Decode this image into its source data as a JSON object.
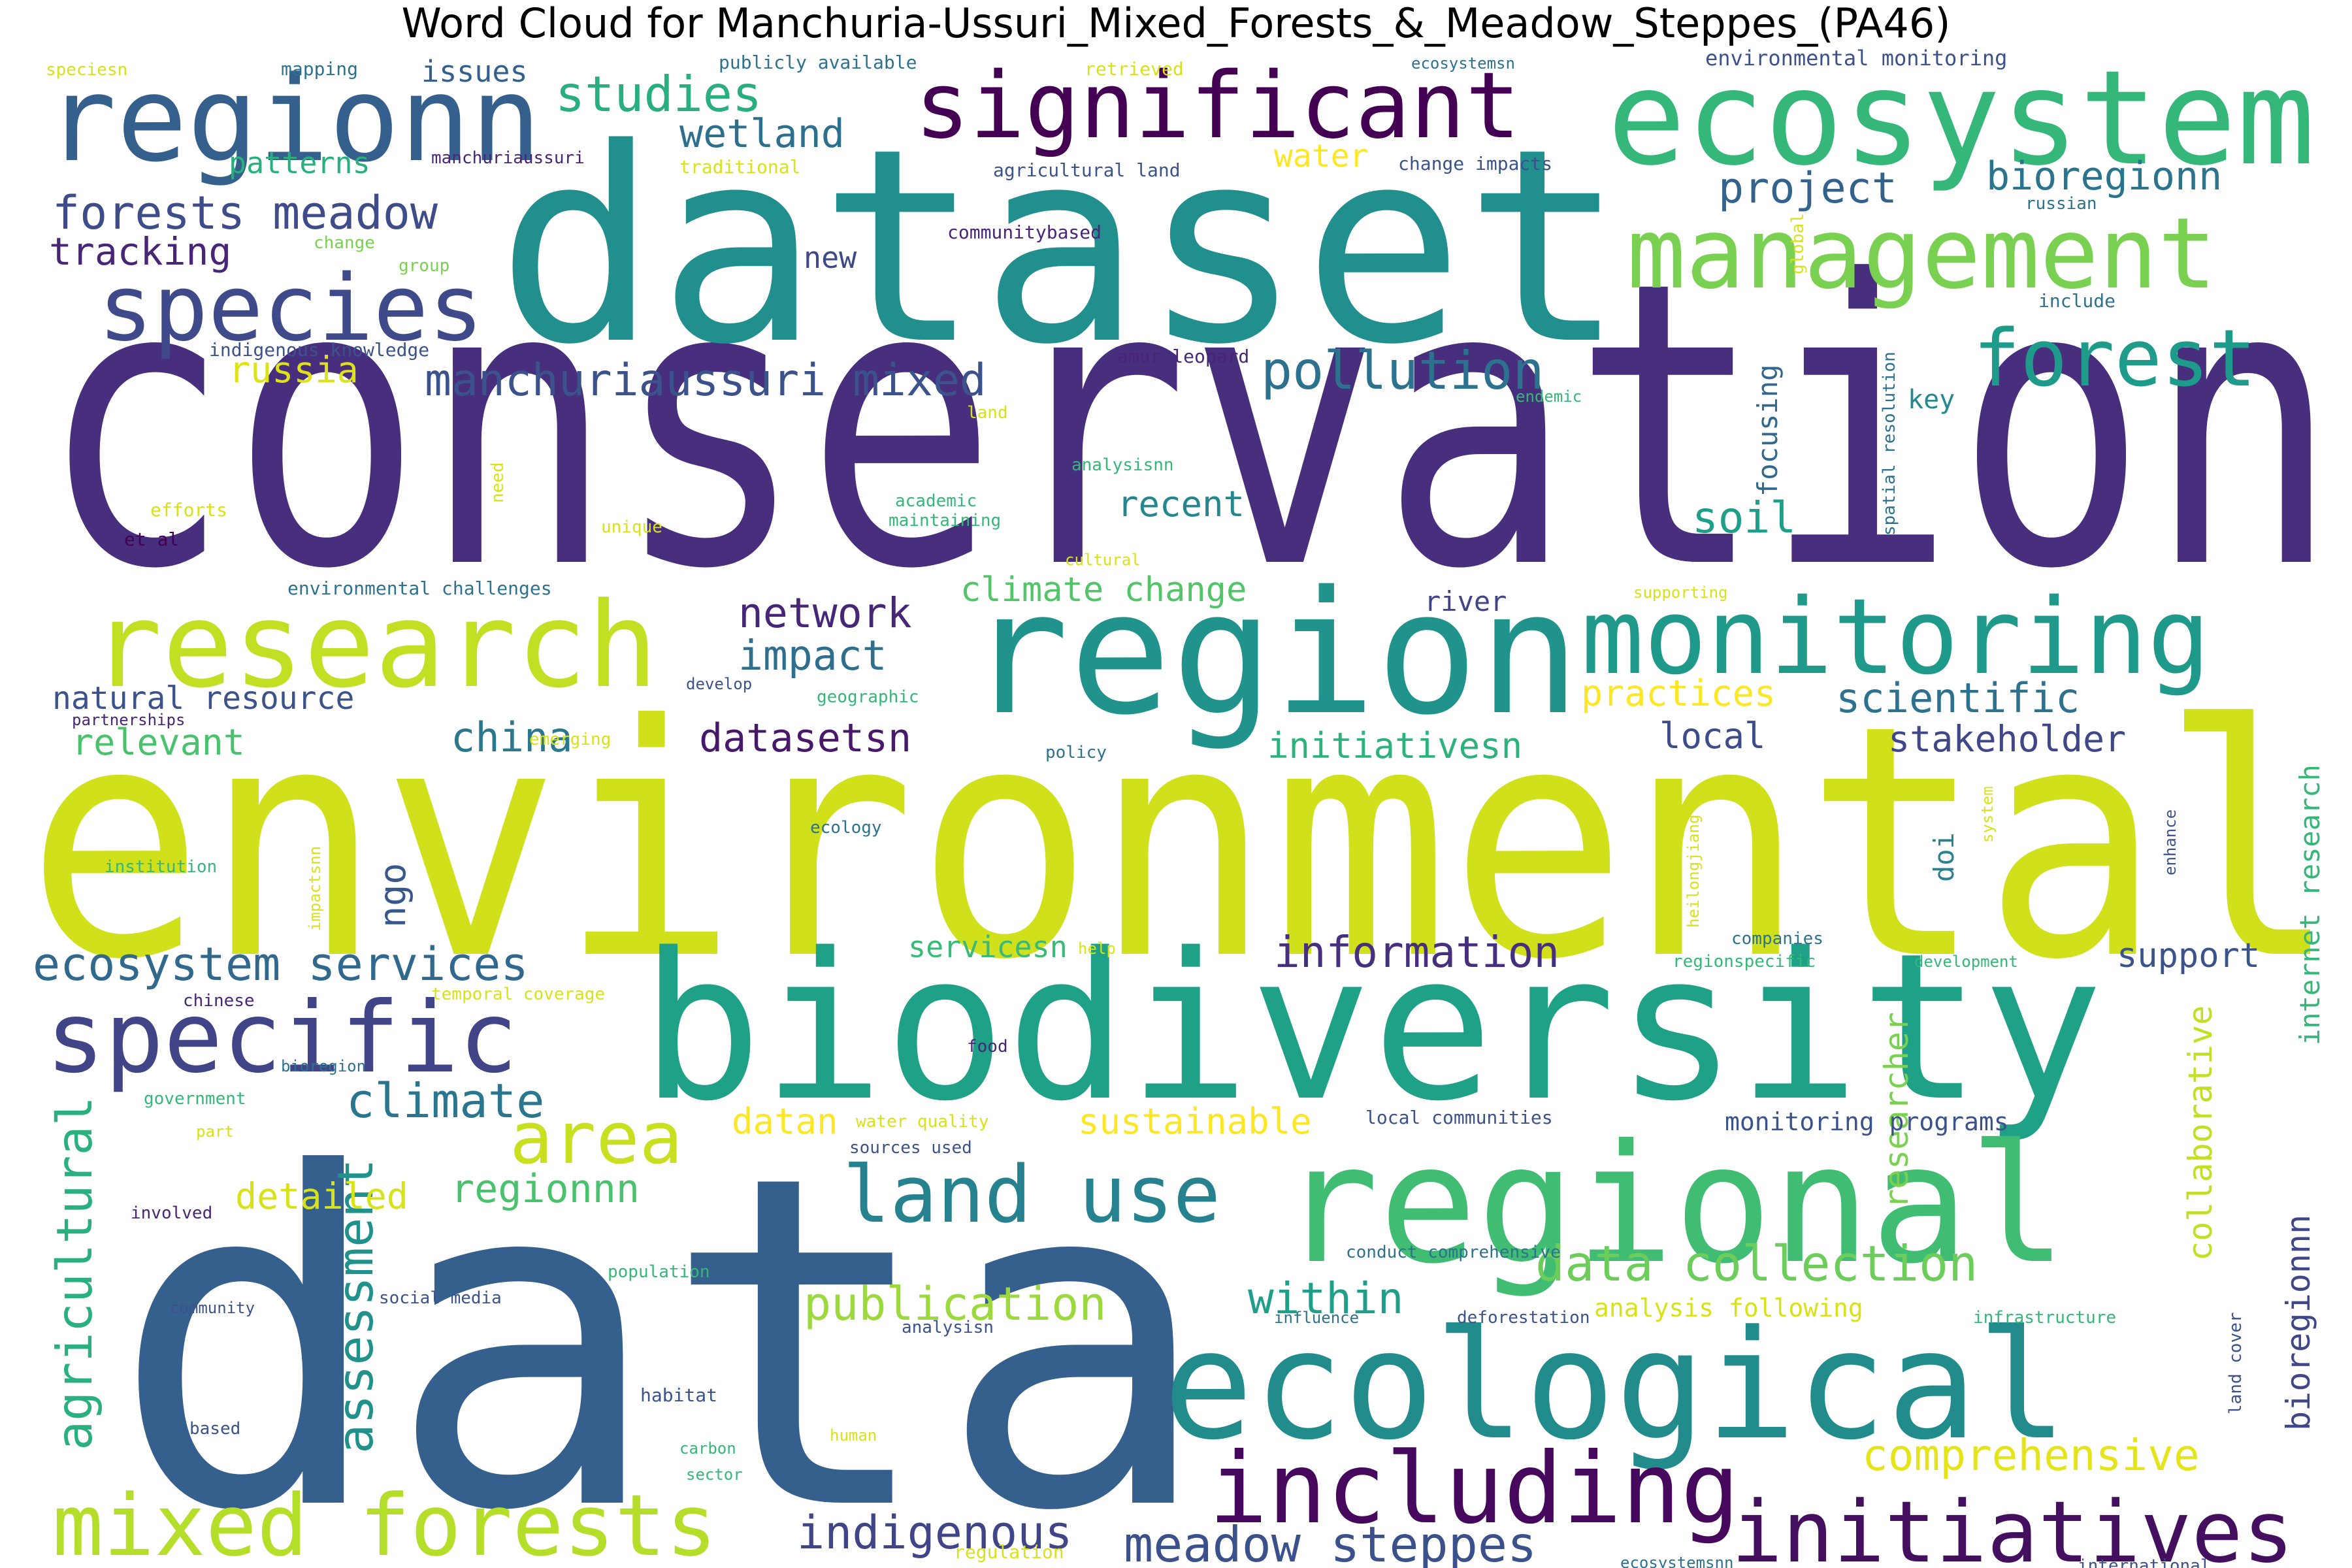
{
  "title": "Word Cloud for Manchuria-Ussuri_Mixed_Forests_&_Meadow_Steppes_(PA46)",
  "palette": "viridis",
  "words": [
    {
      "text": "conservation",
      "color": "#472f7d"
    },
    {
      "text": "environmental",
      "color": "#d0e11c"
    },
    {
      "text": "data",
      "color": "#35608d"
    },
    {
      "text": "dataset",
      "color": "#218f8d"
    },
    {
      "text": "biodiversity",
      "color": "#1fa187"
    },
    {
      "text": "region",
      "color": "#20938c"
    },
    {
      "text": "regional",
      "color": "#40bd72"
    },
    {
      "text": "ecological",
      "color": "#228c8d"
    },
    {
      "text": "ecosystem",
      "color": "#35b779"
    },
    {
      "text": "significant",
      "color": "#440154"
    },
    {
      "text": "management",
      "color": "#7ad151"
    },
    {
      "text": "regionn",
      "color": "#355f8d"
    },
    {
      "text": "research",
      "color": "#c2df23"
    },
    {
      "text": "monitoring",
      "color": "#1f998a"
    },
    {
      "text": "species",
      "color": "#3e4a89"
    },
    {
      "text": "forest",
      "color": "#1e9b8a"
    },
    {
      "text": "mixed forests",
      "color": "#b5de2b"
    },
    {
      "text": "including",
      "color": "#46085c"
    },
    {
      "text": "initiatives",
      "color": "#440f5f"
    },
    {
      "text": "specific",
      "color": "#414487"
    },
    {
      "text": "land use",
      "color": "#26828e"
    },
    {
      "text": "area",
      "color": "#c8e020"
    },
    {
      "text": "pollution",
      "color": "#2c728e"
    },
    {
      "text": "manchuriaussuri mixed",
      "color": "#3b528b"
    },
    {
      "text": "forests meadow",
      "color": "#3e4c8a"
    },
    {
      "text": "ecosystem services",
      "color": "#31688e"
    },
    {
      "text": "data collection",
      "color": "#6ccd5a"
    },
    {
      "text": "publication",
      "color": "#9bd93c"
    },
    {
      "text": "meadow steppes",
      "color": "#3b518b"
    },
    {
      "text": "indigenous",
      "color": "#404588"
    },
    {
      "text": "climate",
      "color": "#2a768e"
    },
    {
      "text": "information",
      "color": "#46307e"
    },
    {
      "text": "within",
      "color": "#1f9e89"
    },
    {
      "text": "comprehensive",
      "color": "#e5e419"
    },
    {
      "text": "assessment",
      "color": "#21918c"
    },
    {
      "text": "agricultural",
      "color": "#2ab07f"
    },
    {
      "text": "studies",
      "color": "#29af7f"
    },
    {
      "text": "wetland",
      "color": "#2d708e"
    },
    {
      "text": "tracking",
      "color": "#482576"
    },
    {
      "text": "russia",
      "color": "#dde318"
    },
    {
      "text": "project",
      "color": "#33628d"
    },
    {
      "text": "bioregionn",
      "color": "#2b748e"
    },
    {
      "text": "network",
      "color": "#482677"
    },
    {
      "text": "impact",
      "color": "#2e6e8e"
    },
    {
      "text": "climate change",
      "color": "#52c569"
    },
    {
      "text": "china",
      "color": "#2a778e"
    },
    {
      "text": "datasetsn",
      "color": "#48186a"
    },
    {
      "text": "scientific",
      "color": "#2c728e"
    },
    {
      "text": "stakeholder",
      "color": "#3f4788"
    },
    {
      "text": "regionnn",
      "color": "#4ac16d"
    },
    {
      "text": "sustainable",
      "color": "#fde725"
    },
    {
      "text": "datan",
      "color": "#fde725"
    },
    {
      "text": "detailed",
      "color": "#d8e219"
    },
    {
      "text": "soil",
      "color": "#1f9e89"
    },
    {
      "text": "recent",
      "color": "#24868e"
    },
    {
      "text": "support",
      "color": "#3a538b"
    },
    {
      "text": "local",
      "color": "#3d4d8a"
    },
    {
      "text": "initiativesn",
      "color": "#2db27d"
    },
    {
      "text": "practices",
      "color": "#fde725"
    },
    {
      "text": "relevant",
      "color": "#4ac16d"
    },
    {
      "text": "natural resource",
      "color": "#3b528b"
    },
    {
      "text": "issues",
      "color": "#355f8d"
    },
    {
      "text": "patterns",
      "color": "#29af7f"
    },
    {
      "text": "water",
      "color": "#fde725"
    },
    {
      "text": "new",
      "color": "#3e4989"
    },
    {
      "text": "key",
      "color": "#23898e"
    },
    {
      "text": "ngo",
      "color": "#38588c"
    },
    {
      "text": "river",
      "color": "#414487"
    },
    {
      "text": "servicesn",
      "color": "#3aba76"
    },
    {
      "text": "bioregionnn",
      "color": "#3f4788"
    },
    {
      "text": "researcher",
      "color": "#7ad151"
    },
    {
      "text": "collaborative",
      "color": "#c2df23"
    },
    {
      "text": "internet research",
      "color": "#35b779"
    },
    {
      "text": "focusing",
      "color": "#31688e"
    },
    {
      "text": "doi",
      "color": "#26828e"
    },
    {
      "text": "monitoring programs",
      "color": "#3b528b"
    },
    {
      "text": "analysis following",
      "color": "#d8e219"
    },
    {
      "text": "environmental monitoring",
      "color": "#3b528b"
    },
    {
      "text": "publicly available",
      "color": "#2c728e"
    },
    {
      "text": "mapping",
      "color": "#2c728e"
    },
    {
      "text": "speciesn",
      "color": "#d8e219"
    },
    {
      "text": "retrieved",
      "color": "#d8e219"
    },
    {
      "text": "ecosystemsn",
      "color": "#2c728e"
    },
    {
      "text": "manchuriaussuri",
      "color": "#482576"
    },
    {
      "text": "traditional",
      "color": "#d8e219"
    },
    {
      "text": "agricultural land",
      "color": "#3b528b"
    },
    {
      "text": "change impacts",
      "color": "#3b528b"
    },
    {
      "text": "russian",
      "color": "#2c728e"
    },
    {
      "text": "change",
      "color": "#7ad151"
    },
    {
      "text": "group",
      "color": "#7ad151"
    },
    {
      "text": "communitybased",
      "color": "#482576"
    },
    {
      "text": "include",
      "color": "#2c728e"
    },
    {
      "text": "indigenous knowledge",
      "color": "#3b528b"
    },
    {
      "text": "amur leopard",
      "color": "#482576"
    },
    {
      "text": "global",
      "color": "#d8e219"
    },
    {
      "text": "spatial resolution",
      "color": "#2c728e"
    },
    {
      "text": "endemic",
      "color": "#35b779"
    },
    {
      "text": "land",
      "color": "#d8e219"
    },
    {
      "text": "analysisnn",
      "color": "#35b779"
    },
    {
      "text": "need",
      "color": "#d8e219"
    },
    {
      "text": "efforts",
      "color": "#d8e219"
    },
    {
      "text": "et al",
      "color": "#440154"
    },
    {
      "text": "unique",
      "color": "#d8e219"
    },
    {
      "text": "academic",
      "color": "#35b779"
    },
    {
      "text": "maintaining",
      "color": "#35b779"
    },
    {
      "text": "cultural",
      "color": "#d8e219"
    },
    {
      "text": "supporting",
      "color": "#d8e219"
    },
    {
      "text": "environmental challenges",
      "color": "#2c728e"
    },
    {
      "text": "develop",
      "color": "#3b528b"
    },
    {
      "text": "geographic",
      "color": "#35b779"
    },
    {
      "text": "partnerships",
      "color": "#482576"
    },
    {
      "text": "emerging",
      "color": "#d8e219"
    },
    {
      "text": "policy",
      "color": "#2c728e"
    },
    {
      "text": "ecology",
      "color": "#2c728e"
    },
    {
      "text": "institution",
      "color": "#35b779"
    },
    {
      "text": "impactsnn",
      "color": "#d8e219"
    },
    {
      "text": "heilongjiang",
      "color": "#d8e219"
    },
    {
      "text": "system",
      "color": "#d8e219"
    },
    {
      "text": "enhance",
      "color": "#3b528b"
    },
    {
      "text": "help",
      "color": "#d8e219"
    },
    {
      "text": "companies",
      "color": "#2c728e"
    },
    {
      "text": "regionspecific",
      "color": "#35b779"
    },
    {
      "text": "development",
      "color": "#35b779"
    },
    {
      "text": "chinese",
      "color": "#482576"
    },
    {
      "text": "temporal coverage",
      "color": "#d8e219"
    },
    {
      "text": "food",
      "color": "#482576"
    },
    {
      "text": "bioregion",
      "color": "#2c728e"
    },
    {
      "text": "government",
      "color": "#35b779"
    },
    {
      "text": "part",
      "color": "#d8e219"
    },
    {
      "text": "water quality",
      "color": "#d8e219"
    },
    {
      "text": "sources used",
      "color": "#3b528b"
    },
    {
      "text": "local communities",
      "color": "#3b528b"
    },
    {
      "text": "involved",
      "color": "#482576"
    },
    {
      "text": "conduct comprehensive",
      "color": "#2c728e"
    },
    {
      "text": "population",
      "color": "#35b779"
    },
    {
      "text": "social media",
      "color": "#3b528b"
    },
    {
      "text": "community",
      "color": "#3b528b"
    },
    {
      "text": "influence",
      "color": "#2c728e"
    },
    {
      "text": "deforestation",
      "color": "#3b528b"
    },
    {
      "text": "infrastructure",
      "color": "#35b779"
    },
    {
      "text": "land cover",
      "color": "#3b528b"
    },
    {
      "text": "analysisn",
      "color": "#3b528b"
    },
    {
      "text": "habitat",
      "color": "#3b528b"
    },
    {
      "text": "based",
      "color": "#3b528b"
    },
    {
      "text": "human",
      "color": "#d8e219"
    },
    {
      "text": "carbon",
      "color": "#35b779"
    },
    {
      "text": "sector",
      "color": "#35b779"
    },
    {
      "text": "regulation",
      "color": "#d8e219"
    },
    {
      "text": "ecosystemsnn",
      "color": "#2c728e"
    },
    {
      "text": "international",
      "color": "#3b528b"
    }
  ]
}
